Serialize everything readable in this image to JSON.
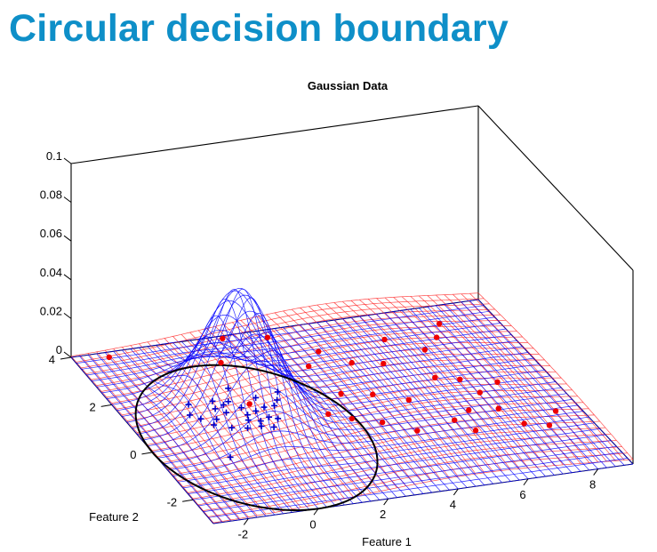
{
  "slide": {
    "title": "Circular decision boundary"
  },
  "chart_data": {
    "type": "surface3d",
    "title": "Gaussian Data",
    "xlabel": "Feature 1",
    "ylabel": "Feature 2",
    "zlabel": "",
    "x_ticks": [
      "-2",
      "0",
      "2",
      "4",
      "6",
      "8"
    ],
    "y_ticks": [
      "-2",
      "0",
      "2",
      "4"
    ],
    "z_ticks": [
      "0",
      "0.02",
      "0.04",
      "0.06",
      "0.08",
      "0.1"
    ],
    "xlim": [
      -3,
      9
    ],
    "ylim": [
      -3,
      4
    ],
    "zlim": [
      0,
      0.1
    ],
    "grid": false,
    "series": [
      {
        "name": "",
        "kind": "gaussian-surface",
        "color": "#0000ff",
        "mean": [
          0.1,
          0.9
        ],
        "sigma": [
          0.9,
          0.9
        ],
        "peak": 0.065
      },
      {
        "name": "",
        "kind": "gaussian-surface",
        "color": "#ff2a2a",
        "mean": [
          4.5,
          1.0
        ],
        "sigma": [
          3.2,
          3.2
        ],
        "peak": 0.014
      }
    ],
    "points_plus": {
      "color": "#0000cc",
      "marker": "plus",
      "points": [
        [
          -1.0,
          1.6
        ],
        [
          0.4,
          2.0
        ],
        [
          -1.2,
          1.2
        ],
        [
          -1.0,
          1.0
        ],
        [
          -0.6,
          0.9
        ],
        [
          -0.4,
          1.3
        ],
        [
          -0.2,
          1.1
        ],
        [
          -0.1,
          1.4
        ],
        [
          -0.3,
          1.6
        ],
        [
          0.1,
          1.5
        ],
        [
          0.3,
          1.2
        ],
        [
          0.6,
          1.0
        ],
        [
          0.9,
          1.1
        ],
        [
          1.2,
          1.1
        ],
        [
          1.4,
          1.3
        ],
        [
          0.2,
          0.7
        ],
        [
          0.5,
          0.6
        ],
        [
          0.8,
          0.7
        ],
        [
          1.0,
          0.6
        ],
        [
          0.4,
          0.4
        ],
        [
          0.0,
          0.4
        ],
        [
          -0.4,
          0.5
        ],
        [
          0.7,
          0.3
        ],
        [
          0.3,
          0.9
        ],
        [
          -0.8,
          0.7
        ],
        [
          -1.1,
          -0.6
        ],
        [
          1.6,
          1.6
        ],
        [
          0.9,
          1.5
        ]
      ]
    },
    "points_dot": {
      "color": "#ee0000",
      "marker": "dot",
      "points": [
        [
          -2.0,
          3.8
        ],
        [
          0.8,
          3.0
        ],
        [
          1.4,
          3.9
        ],
        [
          2.6,
          3.7
        ],
        [
          3.0,
          2.4
        ],
        [
          3.6,
          2.9
        ],
        [
          4.2,
          2.3
        ],
        [
          5.0,
          2.1
        ],
        [
          5.6,
          3.0
        ],
        [
          6.4,
          2.4
        ],
        [
          7.0,
          2.8
        ],
        [
          7.4,
          3.3
        ],
        [
          3.2,
          1.2
        ],
        [
          4.0,
          1.0
        ],
        [
          4.8,
          0.6
        ],
        [
          6.0,
          1.3
        ],
        [
          6.6,
          1.1
        ],
        [
          6.8,
          0.5
        ],
        [
          7.5,
          0.8
        ],
        [
          5.5,
          -0.4
        ],
        [
          6.1,
          -0.1
        ],
        [
          6.9,
          -0.2
        ],
        [
          7.2,
          -0.9
        ],
        [
          5.8,
          -0.9
        ],
        [
          4.3,
          -0.6
        ],
        [
          7.8,
          -1.1
        ],
        [
          8.3,
          -0.6
        ],
        [
          2.9,
          0.2
        ],
        [
          3.6,
          -0.1
        ],
        [
          2.4,
          0.5
        ],
        [
          0.6,
          1.3
        ]
      ]
    },
    "decision_boundary": {
      "shape": "circle",
      "center": [
        0.0,
        0.0
      ],
      "radius": 3.0,
      "color": "#000000"
    }
  }
}
